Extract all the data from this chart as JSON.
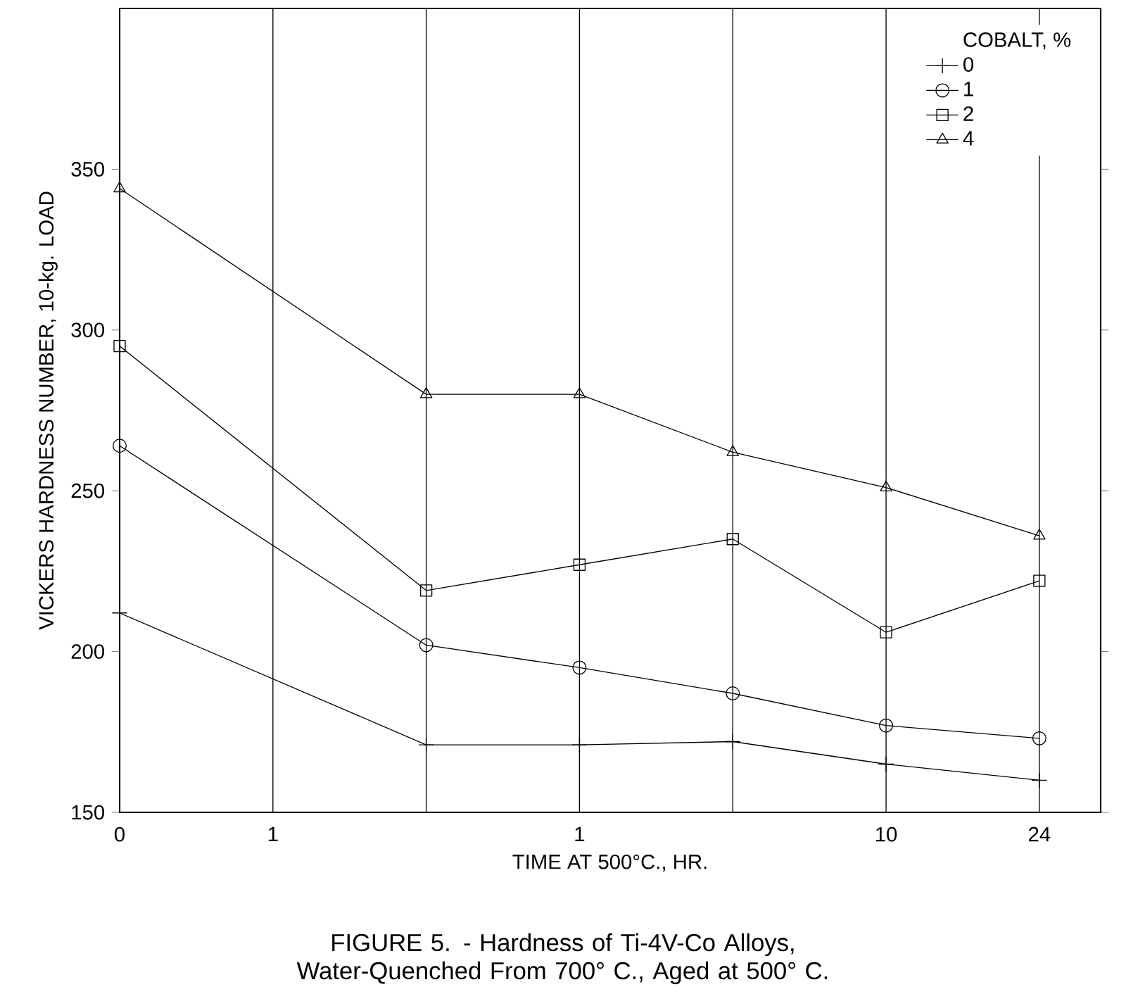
{
  "chart_data": {
    "type": "line",
    "title": "FIGURE 5. - Hardness of Ti-4V-Co Alloys, Water-Quenched From 700° C., Aged at 500° C.",
    "xlabel": "TIME AT 500°C., HR.",
    "ylabel": "VICKERS HARDNESS NUMBER, 10-kg. LOAD",
    "legend_title": "COBALT, %",
    "categories": [
      "0",
      "1",
      null,
      "1",
      null,
      "10",
      "24"
    ],
    "series": [
      {
        "name": "0",
        "color": "#000000",
        "marker": "cross",
        "values": [
          212,
          null,
          171,
          171,
          172,
          165,
          160
        ]
      },
      {
        "name": "1",
        "color": "#000000",
        "marker": "circle",
        "values": [
          264,
          null,
          202,
          195,
          187,
          177,
          173
        ]
      },
      {
        "name": "2",
        "color": "#000000",
        "marker": "square",
        "values": [
          295,
          null,
          219,
          227,
          235,
          206,
          222
        ]
      },
      {
        "name": "4",
        "color": "#000000",
        "marker": "triangle",
        "values": [
          344,
          null,
          280,
          280,
          262,
          251,
          236
        ]
      }
    ],
    "ylim": [
      150,
      400
    ],
    "yticks": [
      150,
      200,
      250,
      300,
      350
    ],
    "grid": "x",
    "legend": "top right",
    "line_style": "solid"
  }
}
